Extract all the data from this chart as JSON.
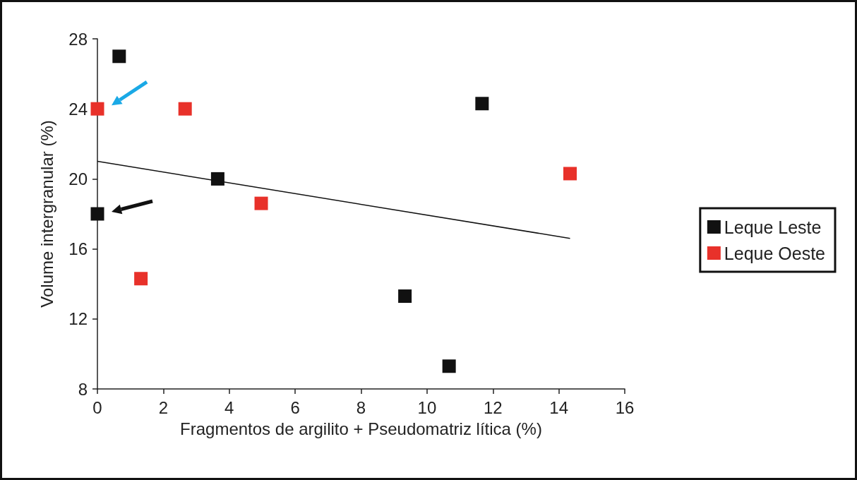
{
  "chart_data": {
    "type": "scatter",
    "xlabel": "Fragmentos de argilito + Pseudomatriz lítica (%)",
    "ylabel": "Volume intergranular (%)",
    "xlim": [
      0,
      16
    ],
    "xticks": [
      0,
      2,
      4,
      6,
      8,
      10,
      12,
      14,
      16
    ],
    "ylim": [
      8,
      28
    ],
    "yticks": [
      8,
      12,
      16,
      20,
      24,
      28
    ],
    "grid": false,
    "legend": "right",
    "marker": "square",
    "series": [
      {
        "name": "Leque Leste",
        "color": "#111111",
        "x": [
          0.66,
          11.67,
          3.65,
          0,
          9.33,
          10.67
        ],
        "values": [
          27.0,
          24.3,
          20.0,
          18.0,
          13.3,
          9.3
        ]
      },
      {
        "name": "Leque Oeste",
        "color": "#e8312a",
        "x": [
          0,
          2.66,
          4.97,
          1.32,
          14.34
        ],
        "values": [
          24.0,
          24.0,
          18.6,
          14.3,
          20.3
        ]
      },
      {
        "type": "line",
        "marker": "none",
        "color": "#111111",
        "x": [
          0,
          14.34
        ],
        "values": [
          21.0,
          16.6
        ]
      }
    ]
  }
}
